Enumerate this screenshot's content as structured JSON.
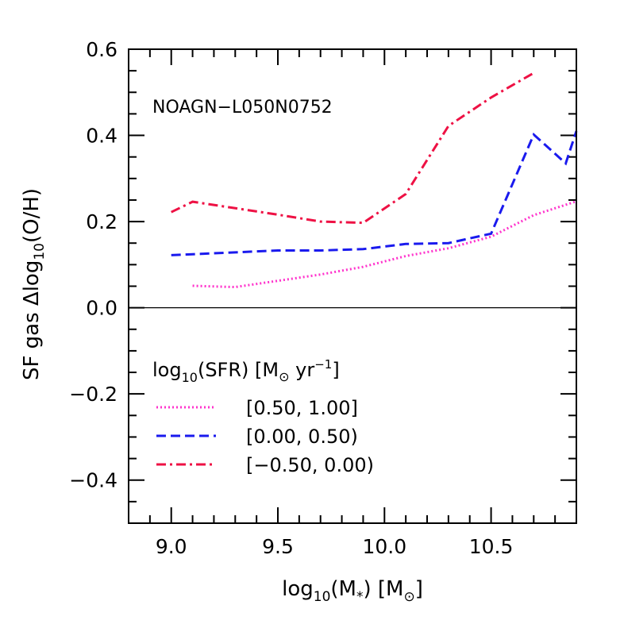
{
  "chart_data": {
    "type": "line",
    "annotation": "NOAGN−L050N0752",
    "xlabel": {
      "pre": "log",
      "sub1": "10",
      "mid": "(M",
      "sub2": "*",
      "post": ")  [M",
      "sun": "⊙",
      "end": "]"
    },
    "ylabel": {
      "pre": "SF  gas  Δlog",
      "sub": "10",
      "post": "(O/H)"
    },
    "xlim": [
      8.8,
      10.9
    ],
    "ylim": [
      -0.5,
      0.6
    ],
    "x_ticks": [
      {
        "v": 9.0,
        "label": "9.0"
      },
      {
        "v": 9.5,
        "label": "9.5"
      },
      {
        "v": 10.0,
        "label": "10.0"
      },
      {
        "v": 10.5,
        "label": "10.5"
      }
    ],
    "x_minor_step": 0.1,
    "y_ticks": [
      {
        "v": 0.6,
        "label": "0.6"
      },
      {
        "v": 0.4,
        "label": "0.4"
      },
      {
        "v": 0.2,
        "label": "0.2"
      },
      {
        "v": 0.0,
        "label": "0.0"
      },
      {
        "v": -0.2,
        "label": "−0.2"
      },
      {
        "v": -0.4,
        "label": "−0.4"
      }
    ],
    "y_minor_step": 0.05,
    "reference_line_y": 0.0,
    "legend": {
      "title": {
        "pre": "log",
        "sub": "10",
        "mid": "(SFR)  [M",
        "sun": "⊙",
        "mid2": " yr",
        "sup": "−1",
        "end": "]"
      },
      "placement": "lower-left"
    },
    "series": [
      {
        "name": "[0.50, 1.00]",
        "color": "#ff33cc",
        "style": "dotted",
        "x": [
          9.1,
          9.3,
          9.7,
          9.9,
          10.1,
          10.3,
          10.5,
          10.7,
          10.9
        ],
        "y": [
          0.051,
          0.048,
          0.077,
          0.095,
          0.12,
          0.138,
          0.165,
          0.215,
          0.247
        ]
      },
      {
        "name": "[0.00, 0.50)",
        "color": "#1a1aee",
        "style": "dashed",
        "x": [
          9.0,
          9.5,
          9.7,
          9.9,
          10.1,
          10.3,
          10.5,
          10.7,
          10.85,
          10.9
        ],
        "y": [
          0.122,
          0.133,
          0.133,
          0.136,
          0.148,
          0.15,
          0.172,
          0.402,
          0.335,
          0.41
        ]
      },
      {
        "name": "[−0.50, 0.00)",
        "color": "#ee1144",
        "style": "dashdot",
        "x": [
          9.0,
          9.1,
          9.5,
          9.7,
          9.9,
          10.1,
          10.3,
          10.5,
          10.7
        ],
        "y": [
          0.222,
          0.246,
          0.216,
          0.2,
          0.197,
          0.264,
          0.422,
          0.488,
          0.545
        ]
      }
    ]
  }
}
